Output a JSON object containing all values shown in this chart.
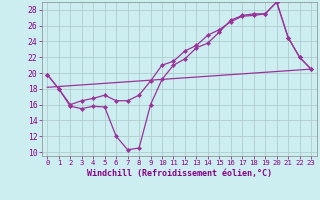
{
  "xlabel": "Windchill (Refroidissement éolien,°C)",
  "background_color": "#cceef0",
  "grid_color": "#b0c8c8",
  "line_color": "#993399",
  "xlim": [
    -0.5,
    23.5
  ],
  "ylim": [
    9.5,
    29.0
  ],
  "xticks": [
    0,
    1,
    2,
    3,
    4,
    5,
    6,
    7,
    8,
    9,
    10,
    11,
    12,
    13,
    14,
    15,
    16,
    17,
    18,
    19,
    20,
    21,
    22,
    23
  ],
  "yticks": [
    10,
    12,
    14,
    16,
    18,
    20,
    22,
    24,
    26,
    28
  ],
  "line1_x": [
    0,
    1,
    2,
    3,
    4,
    5,
    6,
    7,
    8,
    9,
    10,
    11,
    12,
    13,
    14,
    15,
    16,
    17,
    18,
    19,
    20,
    21,
    22,
    23
  ],
  "line1_y": [
    19.8,
    18.0,
    15.8,
    15.5,
    15.8,
    15.7,
    12.0,
    10.3,
    10.5,
    16.0,
    19.2,
    21.0,
    21.8,
    23.2,
    23.8,
    25.2,
    26.7,
    27.3,
    27.5,
    27.5,
    29.0,
    24.5,
    22.0,
    20.5
  ],
  "line2_x": [
    0,
    1,
    2,
    3,
    4,
    5,
    6,
    7,
    8,
    9,
    10,
    11,
    12,
    13,
    14,
    15,
    16,
    17,
    18,
    19,
    20,
    21,
    22,
    23
  ],
  "line2_y": [
    19.8,
    18.0,
    16.0,
    16.5,
    16.8,
    17.2,
    16.5,
    16.5,
    17.2,
    19.0,
    21.0,
    21.5,
    22.8,
    23.5,
    24.8,
    25.5,
    26.5,
    27.2,
    27.3,
    27.5,
    29.0,
    24.5,
    22.0,
    20.5
  ],
  "line3_x": [
    0,
    23
  ],
  "line3_y": [
    18.2,
    20.5
  ]
}
